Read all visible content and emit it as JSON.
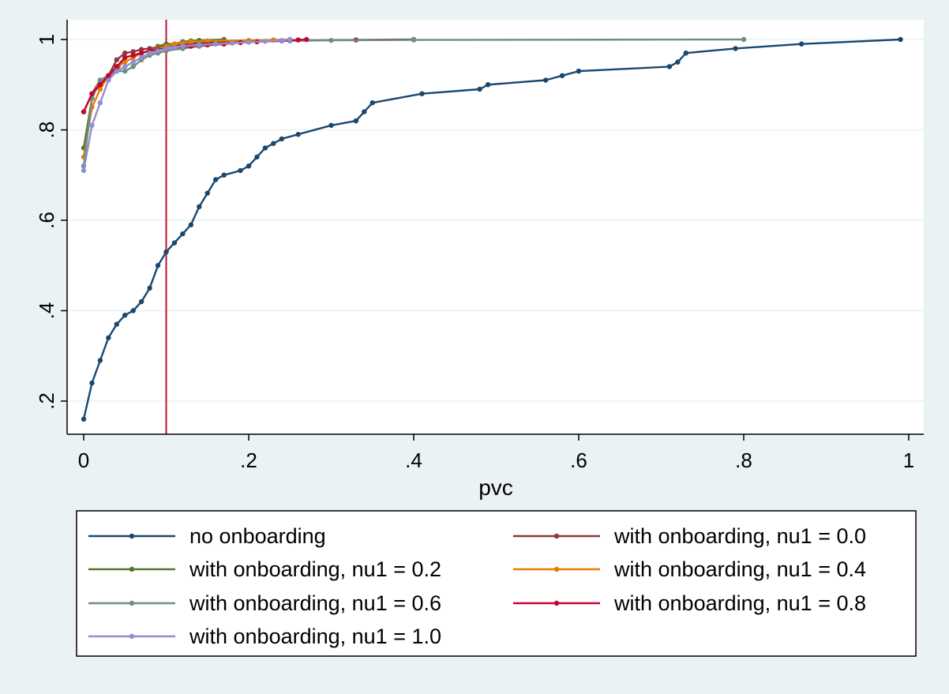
{
  "chart_data": {
    "type": "line",
    "title": "",
    "xlabel": "pvc",
    "ylabel": "",
    "xlim": [
      0,
      1
    ],
    "ylim": [
      0.16,
      1
    ],
    "xticks": [
      0,
      0.2,
      0.4,
      0.6,
      0.8,
      1
    ],
    "xtick_labels": [
      "0",
      ".2",
      ".4",
      ".6",
      ".8",
      "1"
    ],
    "yticks": [
      0.2,
      0.4,
      0.6,
      0.8,
      1
    ],
    "ytick_labels": [
      ".2",
      ".4",
      ".6",
      ".8",
      "1"
    ],
    "grid": "horizontal",
    "legend_position": "bottom",
    "reference_line": {
      "x": 0.1,
      "color": "#c1122f"
    },
    "series": [
      {
        "name": "no onboarding",
        "color": "#1a476f",
        "x": [
          0,
          0.01,
          0.02,
          0.03,
          0.04,
          0.05,
          0.06,
          0.07,
          0.08,
          0.09,
          0.1,
          0.11,
          0.12,
          0.13,
          0.14,
          0.15,
          0.16,
          0.17,
          0.19,
          0.2,
          0.21,
          0.22,
          0.23,
          0.24,
          0.26,
          0.3,
          0.33,
          0.34,
          0.35,
          0.41,
          0.48,
          0.49,
          0.56,
          0.58,
          0.6,
          0.71,
          0.72,
          0.73,
          0.79,
          0.87,
          0.99
        ],
        "y": [
          0.16,
          0.24,
          0.29,
          0.34,
          0.37,
          0.39,
          0.4,
          0.42,
          0.45,
          0.5,
          0.53,
          0.55,
          0.57,
          0.59,
          0.63,
          0.66,
          0.69,
          0.7,
          0.71,
          0.72,
          0.74,
          0.76,
          0.77,
          0.78,
          0.79,
          0.81,
          0.82,
          0.84,
          0.86,
          0.88,
          0.89,
          0.9,
          0.91,
          0.92,
          0.93,
          0.94,
          0.95,
          0.97,
          0.98,
          0.99,
          1.0
        ]
      },
      {
        "name": "with onboarding, nu1 = 0.0",
        "color": "#90353b",
        "x": [
          0,
          0.01,
          0.02,
          0.03,
          0.04,
          0.05,
          0.06,
          0.07,
          0.08,
          0.09,
          0.1,
          0.11,
          0.12,
          0.14,
          0.17,
          0.2,
          0.25,
          0.33,
          0.4
        ],
        "y": [
          0.84,
          0.88,
          0.91,
          0.92,
          0.955,
          0.97,
          0.973,
          0.978,
          0.98,
          0.983,
          0.985,
          0.987,
          0.989,
          0.992,
          0.995,
          0.997,
          0.998,
          0.999,
          1.0
        ]
      },
      {
        "name": "with onboarding, nu1 = 0.2",
        "color": "#55752f",
        "x": [
          0,
          0.01,
          0.02,
          0.03,
          0.04,
          0.05,
          0.06,
          0.07,
          0.08,
          0.09,
          0.1,
          0.11,
          0.12,
          0.13,
          0.14,
          0.17
        ],
        "y": [
          0.76,
          0.87,
          0.91,
          0.92,
          0.93,
          0.96,
          0.965,
          0.97,
          0.975,
          0.985,
          0.99,
          0.99,
          0.995,
          0.997,
          0.998,
          1.0
        ]
      },
      {
        "name": "with onboarding, nu1 = 0.4",
        "color": "#e37e00",
        "x": [
          0,
          0.01,
          0.02,
          0.03,
          0.04,
          0.05,
          0.06,
          0.07,
          0.08,
          0.09,
          0.1,
          0.11,
          0.12,
          0.13,
          0.15,
          0.2,
          0.23,
          0.25
        ],
        "y": [
          0.74,
          0.85,
          0.89,
          0.92,
          0.94,
          0.95,
          0.96,
          0.97,
          0.975,
          0.98,
          0.985,
          0.99,
          0.992,
          0.995,
          0.997,
          0.998,
          0.999,
          1.0
        ]
      },
      {
        "name": "with onboarding, nu1 = 0.6",
        "color": "#6e8e84",
        "x": [
          0,
          0.01,
          0.02,
          0.03,
          0.04,
          0.05,
          0.06,
          0.07,
          0.08,
          0.09,
          0.1,
          0.12,
          0.14,
          0.17,
          0.2,
          0.25,
          0.3,
          0.4,
          0.8
        ],
        "y": [
          0.72,
          0.87,
          0.91,
          0.92,
          0.93,
          0.93,
          0.94,
          0.955,
          0.965,
          0.97,
          0.975,
          0.98,
          0.985,
          0.99,
          0.995,
          0.997,
          0.998,
          0.999,
          1.0
        ]
      },
      {
        "name": "with onboarding, nu1 = 0.8",
        "color": "#c10534",
        "x": [
          0,
          0.01,
          0.02,
          0.03,
          0.04,
          0.05,
          0.06,
          0.07,
          0.08,
          0.09,
          0.1,
          0.11,
          0.13,
          0.15,
          0.17,
          0.19,
          0.21,
          0.24,
          0.26,
          0.27
        ],
        "y": [
          0.84,
          0.88,
          0.9,
          0.92,
          0.94,
          0.96,
          0.965,
          0.97,
          0.975,
          0.978,
          0.98,
          0.982,
          0.985,
          0.988,
          0.99,
          0.993,
          0.995,
          0.997,
          0.999,
          1.0
        ]
      },
      {
        "name": "with onboarding, nu1 = 1.0",
        "color": "#938dd2",
        "x": [
          0,
          0.01,
          0.02,
          0.03,
          0.04,
          0.05,
          0.06,
          0.07,
          0.08,
          0.09,
          0.1,
          0.11,
          0.12,
          0.14,
          0.16,
          0.18,
          0.2,
          0.22,
          0.24,
          0.25
        ],
        "y": [
          0.71,
          0.81,
          0.86,
          0.91,
          0.93,
          0.94,
          0.95,
          0.96,
          0.97,
          0.975,
          0.98,
          0.982,
          0.985,
          0.988,
          0.99,
          0.992,
          0.994,
          0.996,
          0.998,
          1.0
        ]
      }
    ]
  }
}
